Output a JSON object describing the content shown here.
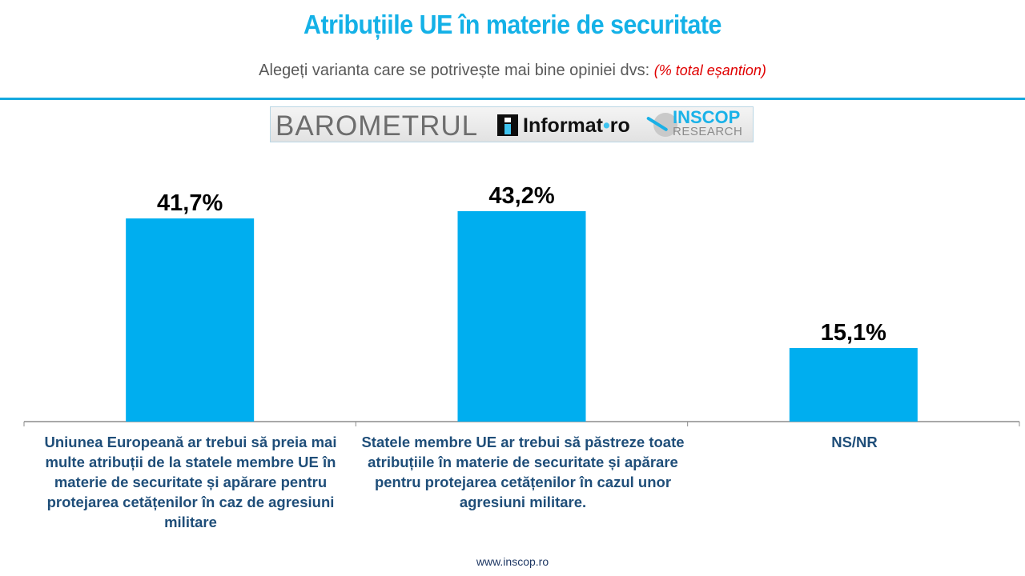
{
  "header": {
    "title": "Atribuțiile UE în materie de securitate",
    "subtitle": "Alegeți varianta care se potrivește mai bine opiniei dvs:",
    "subtitle_note": "(% total eșantion)"
  },
  "logos": {
    "barometrul": "BAROMETRUL",
    "informat": "Informat",
    "informat_dot": "•",
    "informat_ro": "ro",
    "inscop": "INSCOP",
    "research": "RESEARCH"
  },
  "colors": {
    "bar": "#00aeef",
    "title": "#14b1e7",
    "category_text": "#1f4e79",
    "note": "#e00000"
  },
  "chart_data": {
    "type": "bar",
    "title": "Atribuțiile UE în materie de securitate",
    "subtitle": "Alegeți varianta care se potrivește mai bine opiniei dvs: (% total eșantion)",
    "xlabel": "",
    "ylabel": "",
    "ylim": [
      0,
      50
    ],
    "grid": false,
    "legend": "none",
    "categories": [
      "Uniunea Europeană ar trebui să preia mai multe atribuții de la statele membre UE în materie de securitate și apărare pentru protejarea cetățenilor în caz de agresiuni militare",
      "Statele membre UE ar trebui să păstreze toate atribuțiile în materie de securitate și apărare pentru protejarea cetățenilor în cazul unor agresiuni militare.",
      "NS/NR"
    ],
    "values": [
      41.7,
      43.2,
      15.1
    ],
    "data_labels": [
      "41,7%",
      "43,2%",
      "15,1%"
    ]
  },
  "footer": {
    "url": "www.inscop.ro"
  }
}
